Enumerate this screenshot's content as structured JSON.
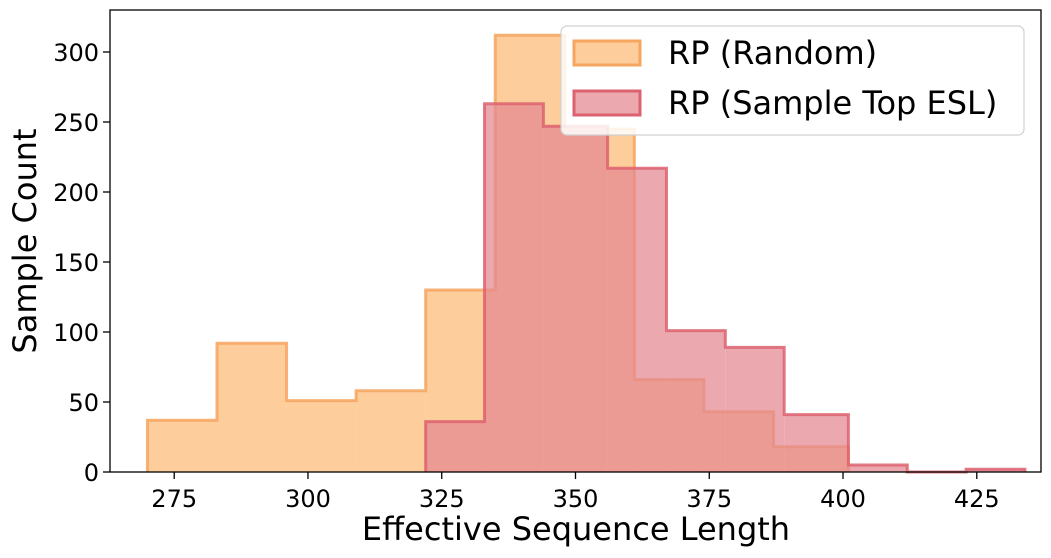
{
  "chart_data": {
    "type": "histogram",
    "xlabel": "Effective Sequence Length",
    "ylabel": "Sample Count",
    "xlim": [
      263,
      437
    ],
    "ylim": [
      0,
      330
    ],
    "xticks": [
      275,
      300,
      325,
      350,
      375,
      400,
      425
    ],
    "yticks": [
      0,
      50,
      100,
      150,
      200,
      250,
      300
    ],
    "legend_position": "top-right",
    "series": [
      {
        "name": "RP (Random)",
        "fill": "#fdbf80",
        "stroke": "#f6a55f",
        "fill_opacity": 0.78,
        "bins": [
          {
            "x0": 270,
            "x1": 283,
            "count": 37
          },
          {
            "x0": 283,
            "x1": 296,
            "count": 92
          },
          {
            "x0": 296,
            "x1": 309,
            "count": 51
          },
          {
            "x0": 309,
            "x1": 322,
            "count": 58
          },
          {
            "x0": 322,
            "x1": 335,
            "count": 130
          },
          {
            "x0": 335,
            "x1": 348,
            "count": 312
          },
          {
            "x0": 348,
            "x1": 361,
            "count": 245
          },
          {
            "x0": 361,
            "x1": 374,
            "count": 66
          },
          {
            "x0": 374,
            "x1": 387,
            "count": 43
          },
          {
            "x0": 387,
            "x1": 401,
            "count": 18
          }
        ]
      },
      {
        "name": "RP (Sample Top ESL)",
        "fill": "#e38890",
        "stroke": "#dd6270",
        "fill_opacity": 0.72,
        "bins": [
          {
            "x0": 322,
            "x1": 333,
            "count": 36
          },
          {
            "x0": 333,
            "x1": 344,
            "count": 263
          },
          {
            "x0": 344,
            "x1": 356,
            "count": 247
          },
          {
            "x0": 356,
            "x1": 367,
            "count": 217
          },
          {
            "x0": 367,
            "x1": 378,
            "count": 101
          },
          {
            "x0": 378,
            "x1": 389,
            "count": 89
          },
          {
            "x0": 389,
            "x1": 401,
            "count": 41
          },
          {
            "x0": 401,
            "x1": 412,
            "count": 5
          },
          {
            "x0": 412,
            "x1": 423,
            "count": 0
          },
          {
            "x0": 423,
            "x1": 434,
            "count": 2
          }
        ]
      }
    ]
  }
}
